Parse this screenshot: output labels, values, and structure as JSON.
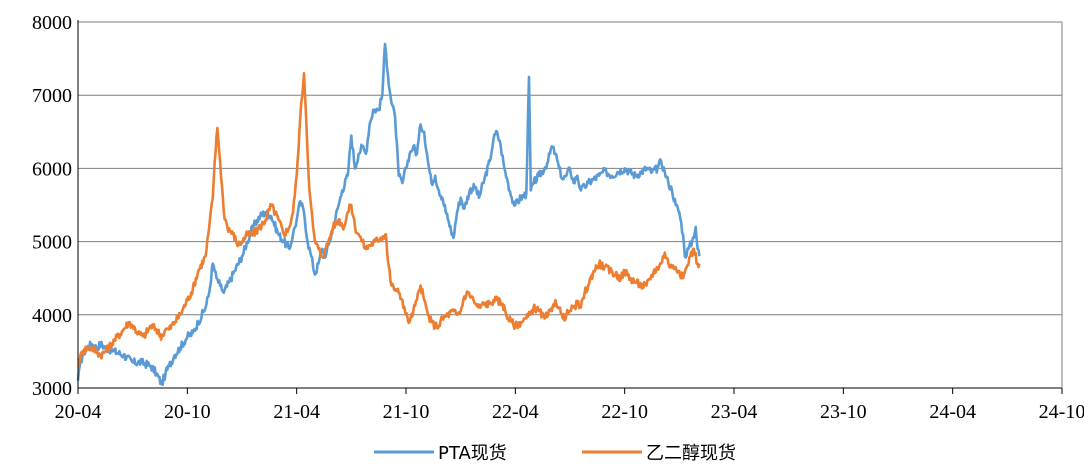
{
  "chart_data": {
    "type": "line",
    "title": "",
    "xlabel": "",
    "ylabel": "",
    "ylim": [
      3000,
      8000
    ],
    "yticks": [
      "3000",
      "4000",
      "5000",
      "6000",
      "7000",
      "8000"
    ],
    "xticks": [
      "20-04",
      "20-10",
      "21-04",
      "21-10",
      "22-04",
      "22-10",
      "23-04",
      "23-10",
      "24-04",
      "24-10"
    ],
    "grid": "horizontal",
    "legend_position": "bottom",
    "colors": {
      "pta": "#5b9bd5",
      "meg": "#ed7d31",
      "axis": "#000000",
      "grid": "#7f7f7f"
    },
    "series": [
      {
        "name": "PTA现货",
        "color": "#5b9bd5",
        "points": [
          [
            0,
            3100
          ],
          [
            0.1,
            3300
          ],
          [
            0.25,
            3450
          ],
          [
            0.5,
            3550
          ],
          [
            0.75,
            3600
          ],
          [
            1,
            3550
          ],
          [
            1.25,
            3600
          ],
          [
            1.5,
            3550
          ],
          [
            2,
            3500
          ],
          [
            2.5,
            3450
          ],
          [
            3,
            3350
          ],
          [
            3.5,
            3350
          ],
          [
            4,
            3300
          ],
          [
            4.3,
            3200
          ],
          [
            4.6,
            3050
          ],
          [
            4.8,
            3200
          ],
          [
            5,
            3300
          ],
          [
            5.3,
            3450
          ],
          [
            5.6,
            3550
          ],
          [
            6,
            3700
          ],
          [
            6.3,
            3750
          ],
          [
            6.6,
            3900
          ],
          [
            7,
            4100
          ],
          [
            7.2,
            4300
          ],
          [
            7.4,
            4700
          ],
          [
            7.6,
            4500
          ],
          [
            7.8,
            4400
          ],
          [
            8,
            4300
          ],
          [
            8.3,
            4450
          ],
          [
            8.6,
            4600
          ],
          [
            9,
            4800
          ],
          [
            9.3,
            5000
          ],
          [
            9.6,
            5200
          ],
          [
            10,
            5350
          ],
          [
            10.3,
            5400
          ],
          [
            10.6,
            5350
          ],
          [
            11,
            5100
          ],
          [
            11.3,
            5000
          ],
          [
            11.6,
            4900
          ],
          [
            11.8,
            5100
          ],
          [
            12,
            5300
          ],
          [
            12.2,
            5550
          ],
          [
            12.4,
            5400
          ],
          [
            12.6,
            5000
          ],
          [
            12.8,
            4800
          ],
          [
            13,
            4550
          ],
          [
            13.2,
            4700
          ],
          [
            13.4,
            4900
          ],
          [
            13.6,
            4800
          ],
          [
            13.8,
            5000
          ],
          [
            14,
            5200
          ],
          [
            14.3,
            5500
          ],
          [
            14.5,
            5700
          ],
          [
            14.8,
            5900
          ],
          [
            15,
            6450
          ],
          [
            15.2,
            6000
          ],
          [
            15.4,
            6200
          ],
          [
            15.6,
            6300
          ],
          [
            15.8,
            6200
          ],
          [
            16,
            6600
          ],
          [
            16.2,
            6800
          ],
          [
            16.5,
            6800
          ],
          [
            16.7,
            7000
          ],
          [
            16.85,
            7700
          ],
          [
            17,
            7300
          ],
          [
            17.2,
            6900
          ],
          [
            17.4,
            6700
          ],
          [
            17.6,
            5900
          ],
          [
            17.8,
            5800
          ],
          [
            18,
            6000
          ],
          [
            18.2,
            6200
          ],
          [
            18.4,
            6300
          ],
          [
            18.6,
            6200
          ],
          [
            18.8,
            6600
          ],
          [
            19,
            6500
          ],
          [
            19.2,
            6100
          ],
          [
            19.4,
            5800
          ],
          [
            19.6,
            5900
          ],
          [
            19.8,
            5700
          ],
          [
            20,
            5600
          ],
          [
            20.3,
            5300
          ],
          [
            20.6,
            5050
          ],
          [
            20.8,
            5400
          ],
          [
            21,
            5600
          ],
          [
            21.2,
            5450
          ],
          [
            21.5,
            5700
          ],
          [
            21.8,
            5750
          ],
          [
            22,
            5600
          ],
          [
            22.3,
            5850
          ],
          [
            22.6,
            6100
          ],
          [
            22.8,
            6400
          ],
          [
            23,
            6500
          ],
          [
            23.2,
            6300
          ],
          [
            23.4,
            6000
          ],
          [
            23.6,
            5800
          ],
          [
            23.8,
            5600
          ],
          [
            24,
            5500
          ],
          [
            24.3,
            5600
          ],
          [
            24.6,
            5650
          ],
          [
            24.75,
            7250
          ],
          [
            24.85,
            5700
          ],
          [
            25,
            5800
          ],
          [
            25.3,
            5900
          ],
          [
            25.6,
            6000
          ],
          [
            25.8,
            6100
          ],
          [
            26,
            6300
          ],
          [
            26.2,
            6200
          ],
          [
            26.4,
            6000
          ],
          [
            26.6,
            5850
          ],
          [
            26.8,
            5900
          ],
          [
            27,
            6000
          ],
          [
            27.2,
            5800
          ],
          [
            27.4,
            5900
          ],
          [
            27.6,
            5700
          ],
          [
            27.8,
            5750
          ],
          [
            28,
            5800
          ],
          [
            28.3,
            5850
          ],
          [
            28.6,
            5900
          ],
          [
            28.8,
            5950
          ],
          [
            29,
            5950
          ],
          [
            29.3,
            5900
          ],
          [
            29.6,
            5950
          ],
          [
            30,
            6000
          ],
          [
            30.3,
            5950
          ],
          [
            30.6,
            5900
          ],
          [
            30.9,
            5950
          ],
          [
            31.2,
            6000
          ],
          [
            31.5,
            5950
          ],
          [
            31.8,
            6000
          ],
          [
            32,
            6100
          ],
          [
            32.2,
            5950
          ],
          [
            32.4,
            5800
          ],
          [
            32.6,
            5700
          ],
          [
            32.8,
            5500
          ],
          [
            33,
            5400
          ],
          [
            33.2,
            5100
          ],
          [
            33.3,
            4800
          ],
          [
            33.5,
            4900
          ],
          [
            33.7,
            5000
          ],
          [
            33.9,
            5200
          ],
          [
            34,
            4900
          ],
          [
            34.1,
            4800
          ]
        ]
      },
      {
        "name": "乙二醇现货",
        "color": "#ed7d31",
        "points": [
          [
            0,
            3300
          ],
          [
            0.1,
            3400
          ],
          [
            0.25,
            3500
          ],
          [
            0.5,
            3550
          ],
          [
            0.75,
            3550
          ],
          [
            1,
            3500
          ],
          [
            1.25,
            3450
          ],
          [
            1.5,
            3500
          ],
          [
            2,
            3650
          ],
          [
            2.5,
            3800
          ],
          [
            2.8,
            3900
          ],
          [
            3,
            3850
          ],
          [
            3.3,
            3750
          ],
          [
            3.6,
            3700
          ],
          [
            4,
            3850
          ],
          [
            4.3,
            3800
          ],
          [
            4.6,
            3700
          ],
          [
            4.8,
            3800
          ],
          [
            5,
            3800
          ],
          [
            5.3,
            3900
          ],
          [
            5.6,
            4000
          ],
          [
            6,
            4200
          ],
          [
            6.3,
            4350
          ],
          [
            6.6,
            4600
          ],
          [
            7,
            4800
          ],
          [
            7.2,
            5200
          ],
          [
            7.4,
            5600
          ],
          [
            7.5,
            6100
          ],
          [
            7.65,
            6550
          ],
          [
            7.8,
            6100
          ],
          [
            8,
            5400
          ],
          [
            8.2,
            5200
          ],
          [
            8.5,
            5100
          ],
          [
            8.8,
            4950
          ],
          [
            9,
            5000
          ],
          [
            9.3,
            5100
          ],
          [
            9.6,
            5100
          ],
          [
            10,
            5200
          ],
          [
            10.3,
            5300
          ],
          [
            10.6,
            5500
          ],
          [
            11,
            5300
          ],
          [
            11.3,
            5100
          ],
          [
            11.6,
            5200
          ],
          [
            11.8,
            5400
          ],
          [
            12,
            5900
          ],
          [
            12.2,
            6700
          ],
          [
            12.4,
            7300
          ],
          [
            12.5,
            6800
          ],
          [
            12.7,
            5700
          ],
          [
            12.9,
            5200
          ],
          [
            13,
            5000
          ],
          [
            13.2,
            4900
          ],
          [
            13.4,
            4800
          ],
          [
            13.6,
            4900
          ],
          [
            13.8,
            5050
          ],
          [
            14,
            5200
          ],
          [
            14.3,
            5300
          ],
          [
            14.6,
            5200
          ],
          [
            14.8,
            5400
          ],
          [
            15,
            5500
          ],
          [
            15.2,
            5200
          ],
          [
            15.4,
            5100
          ],
          [
            15.6,
            5000
          ],
          [
            15.8,
            4900
          ],
          [
            16,
            4950
          ],
          [
            16.3,
            5000
          ],
          [
            16.6,
            5050
          ],
          [
            16.9,
            5100
          ],
          [
            17,
            4750
          ],
          [
            17.2,
            4400
          ],
          [
            17.4,
            4350
          ],
          [
            17.6,
            4300
          ],
          [
            17.8,
            4200
          ],
          [
            18,
            4000
          ],
          [
            18.2,
            3900
          ],
          [
            18.4,
            4050
          ],
          [
            18.6,
            4200
          ],
          [
            18.8,
            4400
          ],
          [
            19,
            4200
          ],
          [
            19.2,
            4000
          ],
          [
            19.4,
            3900
          ],
          [
            19.6,
            3850
          ],
          [
            19.8,
            3850
          ],
          [
            20,
            3950
          ],
          [
            20.3,
            4000
          ],
          [
            20.6,
            4050
          ],
          [
            20.8,
            4000
          ],
          [
            21,
            4050
          ],
          [
            21.2,
            4250
          ],
          [
            21.4,
            4300
          ],
          [
            21.6,
            4250
          ],
          [
            21.8,
            4150
          ],
          [
            22,
            4100
          ],
          [
            22.3,
            4150
          ],
          [
            22.6,
            4150
          ],
          [
            22.8,
            4200
          ],
          [
            23,
            4200
          ],
          [
            23.3,
            4150
          ],
          [
            23.6,
            3950
          ],
          [
            23.8,
            3900
          ],
          [
            24,
            3850
          ],
          [
            24.3,
            3900
          ],
          [
            24.6,
            3950
          ],
          [
            24.8,
            4000
          ],
          [
            25,
            4100
          ],
          [
            25.3,
            4050
          ],
          [
            25.6,
            3950
          ],
          [
            25.8,
            4000
          ],
          [
            26,
            4050
          ],
          [
            26.2,
            4200
          ],
          [
            26.4,
            4100
          ],
          [
            26.6,
            3950
          ],
          [
            26.8,
            4000
          ],
          [
            27,
            4050
          ],
          [
            27.2,
            4100
          ],
          [
            27.4,
            4150
          ],
          [
            27.6,
            4100
          ],
          [
            27.8,
            4300
          ],
          [
            28,
            4400
          ],
          [
            28.3,
            4600
          ],
          [
            28.6,
            4700
          ],
          [
            28.9,
            4650
          ],
          [
            29.2,
            4600
          ],
          [
            29.5,
            4550
          ],
          [
            29.8,
            4500
          ],
          [
            30,
            4600
          ],
          [
            30.3,
            4500
          ],
          [
            30.6,
            4450
          ],
          [
            30.9,
            4400
          ],
          [
            31.2,
            4400
          ],
          [
            31.5,
            4550
          ],
          [
            31.8,
            4650
          ],
          [
            32,
            4700
          ],
          [
            32.2,
            4850
          ],
          [
            32.4,
            4700
          ],
          [
            32.6,
            4650
          ],
          [
            32.8,
            4650
          ],
          [
            33,
            4600
          ],
          [
            33.2,
            4500
          ],
          [
            33.4,
            4650
          ],
          [
            33.6,
            4800
          ],
          [
            33.8,
            4900
          ],
          [
            34,
            4700
          ],
          [
            34.1,
            4700
          ]
        ]
      }
    ]
  }
}
